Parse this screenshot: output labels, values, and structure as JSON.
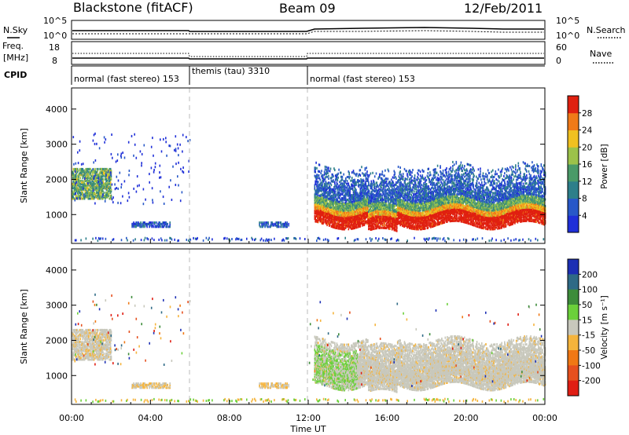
{
  "header": {
    "station": "Blackstone (fitACF)",
    "beam": "Beam 09",
    "date": "12/Feb/2011"
  },
  "status_panels": {
    "nsky_label": "N.Sky",
    "nsky_ticks": [
      "10^5",
      "10^0"
    ],
    "nsearch_label": "N.Search",
    "nsearch_ticks": [
      "10^5",
      "10^0"
    ],
    "freq_label": "Freq.",
    "freq_unit": "[MHz]",
    "freq_ticks": [
      "18",
      "8"
    ],
    "nave_label": "Nave",
    "nave_ticks": [
      "60",
      "0"
    ],
    "cpid_label": "CPID",
    "cpid_segments": [
      {
        "label": "normal (fast stereo)  153",
        "start_hour": 0,
        "end_hour": 6
      },
      {
        "label": "themis (tau)  3310",
        "start_hour": 6,
        "end_hour": 12
      },
      {
        "label": "normal (fast stereo)  153",
        "start_hour": 12,
        "end_hour": 24
      }
    ]
  },
  "axes": {
    "ylabel": "Slant Range [km]",
    "yticks": [
      "1000",
      "2000",
      "3000",
      "4000"
    ],
    "xticks": [
      "00:00",
      "04:00",
      "08:00",
      "12:00",
      "16:00",
      "20:00",
      "00:00"
    ],
    "xlabel": "Time UT"
  },
  "colorbars": {
    "power": {
      "label": "Power [dB]",
      "ticks": [
        "4",
        "8",
        "12",
        "16",
        "20",
        "24",
        "28"
      ],
      "colors": [
        "#1f2fd8",
        "#2858c8",
        "#2d7f8a",
        "#4a9a68",
        "#9cc24a",
        "#f0c020",
        "#f07a18",
        "#e02010"
      ]
    },
    "velocity": {
      "label": "Velocity [m s⁻¹]",
      "ticks": [
        "200",
        "100",
        "50",
        "15",
        "-15",
        "-50",
        "-100",
        "-200"
      ],
      "colors": [
        "#1c2fb4",
        "#2e6a86",
        "#3d8c3a",
        "#6bd03a",
        "#c8c8bc",
        "#f5b43c",
        "#f07814",
        "#e6501e",
        "#e01e14"
      ]
    }
  },
  "chart_data": [
    {
      "type": "heatmap",
      "title": "Power",
      "xlabel": "Time UT",
      "ylabel": "Slant Range [km]",
      "x_range_hours": [
        0,
        24
      ],
      "ylim": [
        180,
        4600
      ],
      "value_unit": "dB",
      "value_range": [
        0,
        30
      ],
      "regions": [
        {
          "start_hour": 0.0,
          "end_hour": 2.0,
          "range_km": [
            1450,
            2300
          ],
          "power_db": [
            10,
            20
          ]
        },
        {
          "start_hour": 12.3,
          "end_hour": 24.0,
          "range_km": [
            650,
            2400
          ],
          "power_db": [
            4,
            30
          ]
        },
        {
          "start_hour": 3.0,
          "end_hour": 5.0,
          "range_km": [
            650,
            800
          ],
          "power_db": [
            4,
            10
          ]
        },
        {
          "start_hour": 9.5,
          "end_hour": 11.0,
          "range_km": [
            650,
            800
          ],
          "power_db": [
            4,
            12
          ]
        }
      ]
    },
    {
      "type": "heatmap",
      "title": "Velocity",
      "xlabel": "Time UT",
      "ylabel": "Slant Range [km]",
      "x_range_hours": [
        0,
        24
      ],
      "ylim": [
        180,
        4600
      ],
      "value_unit": "m s^-1",
      "value_range": [
        -200,
        200
      ],
      "regions": [
        {
          "start_hour": 0.0,
          "end_hour": 2.0,
          "range_km": [
            1450,
            2300
          ],
          "velocity": [
            -50,
            15
          ]
        },
        {
          "start_hour": 12.3,
          "end_hour": 24.0,
          "range_km": [
            650,
            2200
          ],
          "velocity": [
            -15,
            15
          ]
        },
        {
          "start_hour": 12.3,
          "end_hour": 14.5,
          "range_km": [
            700,
            1900
          ],
          "velocity": [
            50,
            100
          ]
        }
      ]
    }
  ]
}
